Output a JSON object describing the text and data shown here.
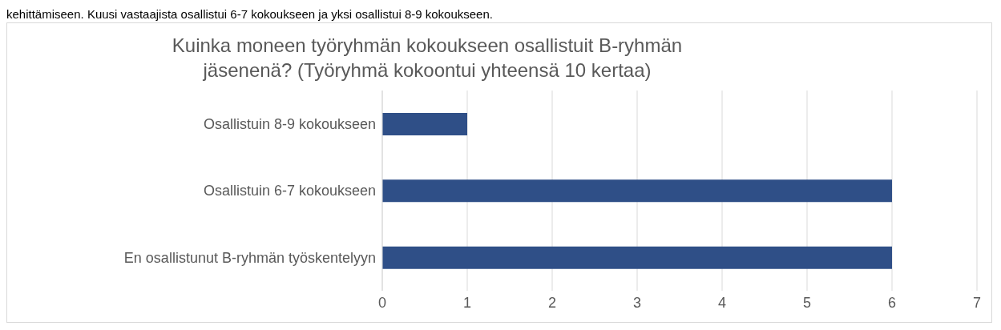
{
  "chart_data": {
    "type": "bar",
    "orientation": "horizontal",
    "title": "Kuinka moneen työryhmän kokoukseen osallistuit B-ryhmän jäsenenä? (Työryhmä kokoontui yhteensä 10 kertaa)",
    "annotations": [
      "kehittämiseen. Kuusi vastaajista osallistui 6-7 kokoukseen ja yksi osallistui 8-9 kokoukseen."
    ],
    "categories": [
      "Osallistuin 8-9 kokoukseen",
      "Osallistuin 6-7 kokoukseen",
      "En osallistunut B-ryhmän työskentelyyn"
    ],
    "values": [
      1,
      6,
      6
    ],
    "color": "#2f4f87",
    "xlim": [
      0,
      7
    ],
    "xticks": [
      0,
      1,
      2,
      3,
      4,
      5,
      6,
      7
    ],
    "grid": "x"
  }
}
